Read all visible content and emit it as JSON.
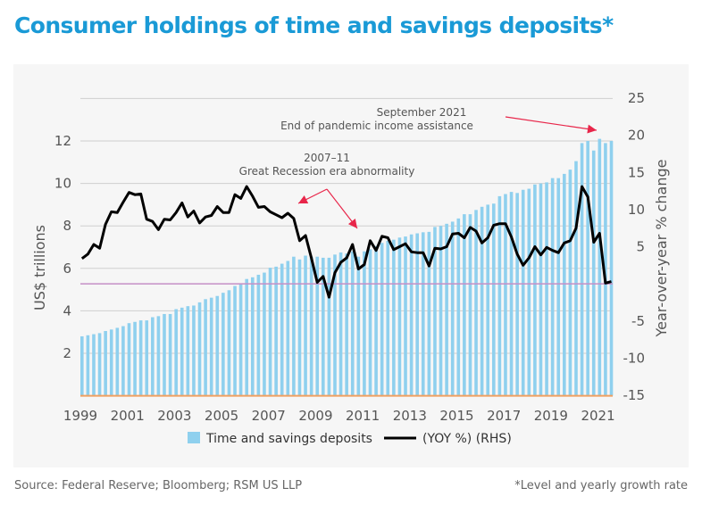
{
  "title": "Consumer holdings of time and savings deposits*",
  "footer": {
    "source": "Source: Federal Reserve; Bloomberg; RSM US LLP",
    "note": "*Level and yearly growth rate"
  },
  "colors": {
    "title": "#1a9ad6",
    "bars": "#8fd0ee",
    "line": "#000000",
    "zero_line": "#c58fc6",
    "baseline": "#f0a060",
    "arrows": "#e8264a"
  },
  "chart_data": {
    "type": "bar+line",
    "title": "Consumer holdings of time and savings deposits*",
    "ylabel": "US$ trillions",
    "ylabel_right": "Year-over-year % change",
    "ylim": [
      0,
      14
    ],
    "ylim_right": [
      -15,
      25
    ],
    "yticks": [
      "2",
      "4",
      "6",
      "8",
      "10",
      "12"
    ],
    "yticks_right": [
      "-15",
      "-10",
      "-5",
      "5",
      "10",
      "15",
      "20",
      "25"
    ],
    "xticks": [
      "1999",
      "2001",
      "2003",
      "2005",
      "2007",
      "2009",
      "2011",
      "2013",
      "2015",
      "2017",
      "2019",
      "2021"
    ],
    "x_start": "1999 Q1",
    "frequency": "quarterly",
    "grid": true,
    "legend_placement": "bottom",
    "series": [
      {
        "name": "Time and savings deposits",
        "type": "bar",
        "axis": "left",
        "values": [
          2.8,
          2.85,
          2.9,
          2.95,
          3.05,
          3.12,
          3.2,
          3.28,
          3.42,
          3.48,
          3.55,
          3.55,
          3.7,
          3.75,
          3.85,
          3.85,
          4.08,
          4.15,
          4.22,
          4.25,
          4.4,
          4.55,
          4.62,
          4.7,
          4.85,
          4.97,
          5.17,
          5.25,
          5.5,
          5.58,
          5.7,
          5.8,
          6.03,
          6.08,
          6.22,
          6.35,
          6.55,
          6.42,
          6.6,
          6.55,
          6.55,
          6.5,
          6.5,
          6.65,
          6.75,
          6.7,
          6.8,
          6.55,
          6.8,
          6.9,
          7.05,
          7.2,
          7.3,
          7.35,
          7.45,
          7.5,
          7.6,
          7.65,
          7.7,
          7.72,
          7.95,
          8.0,
          8.1,
          8.2,
          8.35,
          8.55,
          8.55,
          8.75,
          8.9,
          9.0,
          9.05,
          9.4,
          9.5,
          9.6,
          9.55,
          9.7,
          9.75,
          9.95,
          10.0,
          10.05,
          10.25,
          10.25,
          10.45,
          10.65,
          11.05,
          11.9,
          12.0,
          11.55,
          12.1,
          11.9,
          12.0
        ]
      },
      {
        "name": "(YOY %) (RHS)",
        "type": "line",
        "axis": "right",
        "values": [
          3.4,
          4.0,
          5.3,
          4.8,
          8.0,
          9.7,
          9.6,
          11.0,
          12.3,
          12.0,
          12.1,
          8.7,
          8.4,
          7.3,
          8.7,
          8.6,
          9.6,
          10.9,
          9.0,
          9.8,
          8.2,
          9.0,
          9.2,
          10.4,
          9.6,
          9.6,
          12.0,
          11.5,
          13.1,
          11.8,
          10.3,
          10.4,
          9.7,
          9.3,
          8.9,
          9.5,
          8.8,
          5.8,
          6.5,
          3.5,
          0.2,
          1.0,
          -1.8,
          1.5,
          2.9,
          3.5,
          5.3,
          2.0,
          2.6,
          5.8,
          4.5,
          6.4,
          6.2,
          4.6,
          5.0,
          5.4,
          4.3,
          4.2,
          4.2,
          2.4,
          4.8,
          4.7,
          5.0,
          6.7,
          6.8,
          6.2,
          7.6,
          7.1,
          5.5,
          6.2,
          7.9,
          8.1,
          8.1,
          6.3,
          4.0,
          2.5,
          3.5,
          5.0,
          3.9,
          4.9,
          4.5,
          4.2,
          5.5,
          5.8,
          7.5,
          13.1,
          11.7,
          5.6,
          6.8,
          0.1,
          0.3
        ]
      }
    ],
    "annotations": [
      {
        "line1": "2007–11",
        "line2": "Great Recession era abnormality"
      },
      {
        "line1": "September 2021",
        "line2": "End of pandemic income assistance"
      }
    ]
  }
}
